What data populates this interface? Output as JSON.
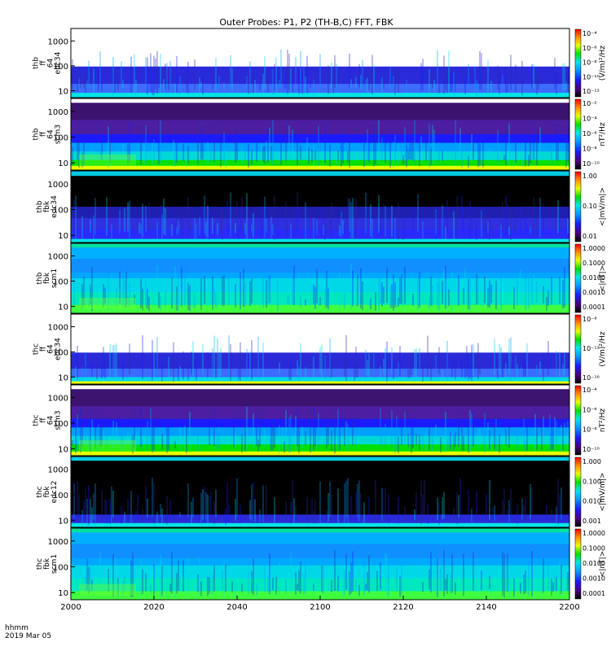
{
  "title": "Outer Probes: P1, P2 (TH-B,C) FFT, FBK",
  "time_axis": {
    "unit_label": "hhmm",
    "date_label": "2019 Mar 05",
    "ticks": [
      "2000",
      "2020",
      "2040",
      "2100",
      "2120",
      "2140",
      "2200"
    ]
  },
  "chart_data": [
    {
      "type": "heatmap",
      "panel": 1,
      "ylabel": [
        "thb",
        "ff",
        "64",
        "edc34"
      ],
      "yticks": [
        "10",
        "100",
        "1000"
      ],
      "colorbar_ticks": [
        "10⁻⁴",
        "10⁻⁶",
        "10⁻⁸",
        "10⁻¹⁰",
        "10⁻¹²"
      ],
      "colorbar_label": "(V/m)²/Hz",
      "colorbar_scale": "log"
    },
    {
      "type": "heatmap",
      "panel": 2,
      "ylabel": [
        "thb",
        "ff",
        "64",
        "scm3"
      ],
      "yticks": [
        "10",
        "100",
        "1000"
      ],
      "colorbar_ticks": [
        "10⁻²",
        "10⁻⁴",
        "10⁻⁶",
        "10⁻⁸",
        "10⁻¹⁰"
      ],
      "colorbar_label": "nT²/Hz",
      "colorbar_scale": "log"
    },
    {
      "type": "heatmap",
      "panel": 3,
      "ylabel": [
        "thb",
        "fbk",
        "edc34"
      ],
      "yticks": [
        "10",
        "100",
        "1000"
      ],
      "colorbar_ticks": [
        "1.00",
        "0.10",
        "0.01"
      ],
      "colorbar_label": "<|mV/m|>",
      "colorbar_scale": "log"
    },
    {
      "type": "heatmap",
      "panel": 4,
      "ylabel": [
        "thb",
        "fbk",
        "scm1"
      ],
      "yticks": [
        "10",
        "100",
        "1000"
      ],
      "colorbar_ticks": [
        "1.0000",
        "0.1000",
        "0.0100",
        "0.0010",
        "0.0001"
      ],
      "colorbar_label": "<|nT|>",
      "colorbar_scale": "log"
    },
    {
      "type": "heatmap",
      "panel": 5,
      "ylabel": [
        "thc",
        "ff",
        "64",
        "edc34"
      ],
      "yticks": [
        "10",
        "100",
        "1000"
      ],
      "colorbar_ticks": [
        "10⁻⁸",
        "10⁻¹²",
        "10⁻¹⁶"
      ],
      "colorbar_label": "(V/m)²/Hz",
      "colorbar_scale": "log"
    },
    {
      "type": "heatmap",
      "panel": 6,
      "ylabel": [
        "thc",
        "ff",
        "64",
        "scm3"
      ],
      "yticks": [
        "10",
        "100",
        "1000"
      ],
      "colorbar_ticks": [
        "10⁻⁴",
        "10⁻⁶",
        "10⁻⁸",
        "10⁻¹⁰"
      ],
      "colorbar_label": "nT²/Hz",
      "colorbar_scale": "log"
    },
    {
      "type": "heatmap",
      "panel": 7,
      "ylabel": [
        "thc",
        "fbk",
        "edc12"
      ],
      "yticks": [
        "10",
        "100",
        "1000"
      ],
      "colorbar_ticks": [
        "1.000",
        "0.100",
        "0.010",
        "0.001"
      ],
      "colorbar_label": "<|mV/m|>",
      "colorbar_scale": "log"
    },
    {
      "type": "heatmap",
      "panel": 8,
      "ylabel": [
        "thc",
        "fbk",
        "scm1"
      ],
      "yticks": [
        "10",
        "100",
        "1000"
      ],
      "colorbar_ticks": [
        "1.0000",
        "0.1000",
        "0.0100",
        "0.0010",
        "0.0001"
      ],
      "colorbar_label": "<|nT|>",
      "colorbar_scale": "log"
    }
  ]
}
